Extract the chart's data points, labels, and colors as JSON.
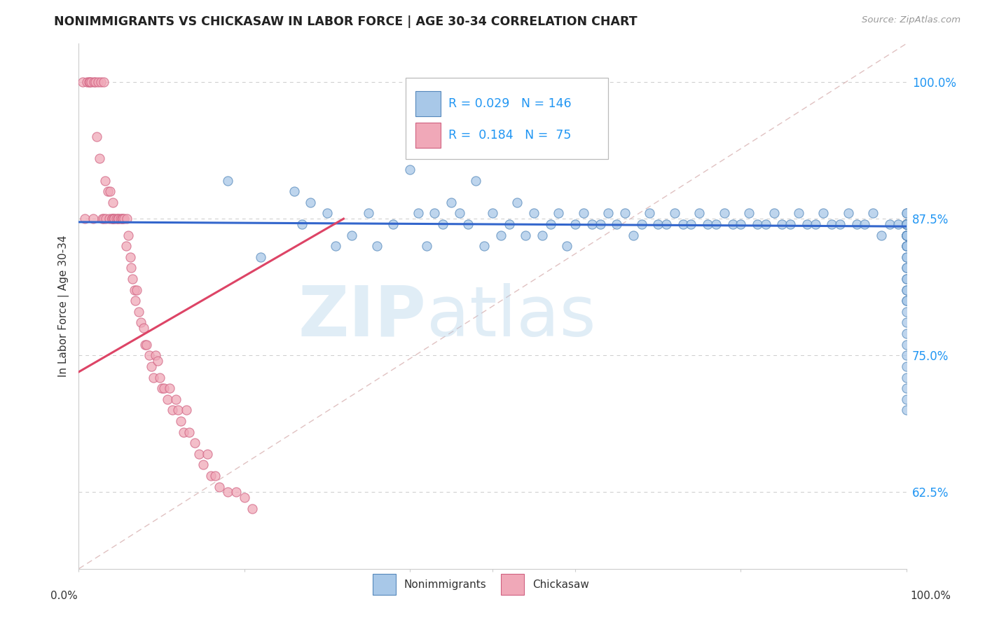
{
  "title": "NONIMMIGRANTS VS CHICKASAW IN LABOR FORCE | AGE 30-34 CORRELATION CHART",
  "source_text": "Source: ZipAtlas.com",
  "ylabel": "In Labor Force | Age 30-34",
  "R1": 0.029,
  "N1": 146,
  "R2": 0.184,
  "N2": 75,
  "color_blue_fill": "#a8c8e8",
  "color_blue_edge": "#5588bb",
  "color_pink_fill": "#f0a8b8",
  "color_pink_edge": "#d06080",
  "color_blue_line": "#3366cc",
  "color_pink_line": "#dd4466",
  "color_text_blue": "#2196F3",
  "color_grid": "#cccccc",
  "xlim": [
    0.0,
    1.0
  ],
  "ylim": [
    0.555,
    1.035
  ],
  "yticks": [
    0.625,
    0.75,
    0.875,
    1.0
  ],
  "ytick_labels": [
    "62.5%",
    "75.0%",
    "87.5%",
    "100.0%"
  ],
  "legend_label1": "Nonimmigrants",
  "legend_label2": "Chickasaw",
  "blue_x": [
    0.18,
    0.22,
    0.26,
    0.27,
    0.28,
    0.3,
    0.31,
    0.33,
    0.35,
    0.36,
    0.38,
    0.4,
    0.41,
    0.42,
    0.43,
    0.44,
    0.45,
    0.46,
    0.47,
    0.48,
    0.49,
    0.5,
    0.51,
    0.52,
    0.53,
    0.54,
    0.55,
    0.56,
    0.57,
    0.58,
    0.59,
    0.6,
    0.61,
    0.62,
    0.63,
    0.64,
    0.65,
    0.66,
    0.67,
    0.68,
    0.69,
    0.7,
    0.71,
    0.72,
    0.73,
    0.74,
    0.75,
    0.76,
    0.77,
    0.78,
    0.79,
    0.8,
    0.81,
    0.82,
    0.83,
    0.84,
    0.85,
    0.86,
    0.87,
    0.88,
    0.89,
    0.9,
    0.91,
    0.92,
    0.93,
    0.94,
    0.95,
    0.96,
    0.97,
    0.98,
    0.99,
    1.0,
    1.0,
    1.0,
    1.0,
    1.0,
    1.0,
    1.0,
    1.0,
    1.0,
    1.0,
    1.0,
    1.0,
    1.0,
    1.0,
    1.0,
    1.0,
    1.0,
    1.0,
    1.0,
    1.0,
    1.0,
    1.0,
    1.0,
    1.0,
    1.0,
    1.0,
    1.0,
    1.0,
    1.0,
    1.0,
    1.0,
    1.0,
    1.0,
    1.0,
    1.0,
    1.0,
    1.0,
    1.0,
    1.0,
    1.0,
    1.0,
    1.0,
    1.0,
    1.0,
    1.0,
    1.0,
    1.0,
    1.0,
    1.0,
    1.0,
    1.0,
    1.0,
    1.0,
    1.0,
    1.0,
    1.0,
    1.0,
    1.0,
    1.0,
    1.0,
    1.0,
    1.0,
    1.0,
    1.0,
    1.0,
    1.0,
    1.0,
    1.0,
    1.0,
    1.0,
    1.0,
    1.0
  ],
  "blue_y": [
    0.91,
    0.84,
    0.9,
    0.87,
    0.89,
    0.88,
    0.85,
    0.86,
    0.88,
    0.85,
    0.87,
    0.92,
    0.88,
    0.85,
    0.88,
    0.87,
    0.89,
    0.88,
    0.87,
    0.91,
    0.85,
    0.88,
    0.86,
    0.87,
    0.89,
    0.86,
    0.88,
    0.86,
    0.87,
    0.88,
    0.85,
    0.87,
    0.88,
    0.87,
    0.87,
    0.88,
    0.87,
    0.88,
    0.86,
    0.87,
    0.88,
    0.87,
    0.87,
    0.88,
    0.87,
    0.87,
    0.88,
    0.87,
    0.87,
    0.88,
    0.87,
    0.87,
    0.88,
    0.87,
    0.87,
    0.88,
    0.87,
    0.87,
    0.88,
    0.87,
    0.87,
    0.88,
    0.87,
    0.87,
    0.88,
    0.87,
    0.87,
    0.88,
    0.86,
    0.87,
    0.87,
    0.88,
    0.87,
    0.87,
    0.87,
    0.86,
    0.87,
    0.88,
    0.87,
    0.87,
    0.87,
    0.87,
    0.87,
    0.87,
    0.87,
    0.87,
    0.87,
    0.87,
    0.87,
    0.87,
    0.87,
    0.87,
    0.87,
    0.87,
    0.87,
    0.87,
    0.87,
    0.87,
    0.87,
    0.87,
    0.87,
    0.87,
    0.86,
    0.86,
    0.87,
    0.87,
    0.87,
    0.86,
    0.86,
    0.87,
    0.87,
    0.87,
    0.86,
    0.85,
    0.86,
    0.87,
    0.87,
    0.86,
    0.86,
    0.85,
    0.85,
    0.86,
    0.85,
    0.84,
    0.83,
    0.82,
    0.81,
    0.8,
    0.83,
    0.84,
    0.82,
    0.81,
    0.8,
    0.79,
    0.78,
    0.77,
    0.76,
    0.75,
    0.74,
    0.73,
    0.72,
    0.71,
    0.7
  ],
  "pink_x": [
    0.005,
    0.007,
    0.01,
    0.012,
    0.013,
    0.015,
    0.017,
    0.018,
    0.02,
    0.022,
    0.023,
    0.025,
    0.027,
    0.028,
    0.03,
    0.03,
    0.032,
    0.033,
    0.035,
    0.037,
    0.038,
    0.04,
    0.04,
    0.041,
    0.042,
    0.043,
    0.045,
    0.047,
    0.048,
    0.05,
    0.052,
    0.053,
    0.055,
    0.057,
    0.058,
    0.06,
    0.062,
    0.063,
    0.065,
    0.067,
    0.068,
    0.07,
    0.072,
    0.075,
    0.078,
    0.08,
    0.082,
    0.085,
    0.088,
    0.09,
    0.093,
    0.095,
    0.098,
    0.1,
    0.103,
    0.107,
    0.11,
    0.113,
    0.117,
    0.12,
    0.123,
    0.127,
    0.13,
    0.133,
    0.14,
    0.145,
    0.15,
    0.155,
    0.16,
    0.165,
    0.17,
    0.18,
    0.19,
    0.2,
    0.21
  ],
  "pink_y": [
    1.0,
    0.875,
    1.0,
    1.0,
    1.0,
    1.0,
    0.875,
    1.0,
    1.0,
    0.95,
    1.0,
    0.93,
    1.0,
    0.875,
    1.0,
    0.875,
    0.91,
    0.875,
    0.9,
    0.875,
    0.9,
    0.875,
    0.875,
    0.89,
    0.875,
    0.875,
    0.875,
    0.875,
    0.875,
    0.875,
    0.875,
    0.875,
    0.875,
    0.85,
    0.875,
    0.86,
    0.84,
    0.83,
    0.82,
    0.81,
    0.8,
    0.81,
    0.79,
    0.78,
    0.775,
    0.76,
    0.76,
    0.75,
    0.74,
    0.73,
    0.75,
    0.745,
    0.73,
    0.72,
    0.72,
    0.71,
    0.72,
    0.7,
    0.71,
    0.7,
    0.69,
    0.68,
    0.7,
    0.68,
    0.67,
    0.66,
    0.65,
    0.66,
    0.64,
    0.64,
    0.63,
    0.625,
    0.625,
    0.62,
    0.61
  ],
  "blue_trend_x": [
    0.0,
    1.0
  ],
  "blue_trend_y": [
    0.872,
    0.868
  ],
  "pink_trend_x": [
    0.0,
    0.32
  ],
  "pink_trend_y": [
    0.735,
    0.875
  ],
  "ref_line_x": [
    0.0,
    1.0
  ],
  "ref_line_y": [
    0.555,
    1.035
  ]
}
